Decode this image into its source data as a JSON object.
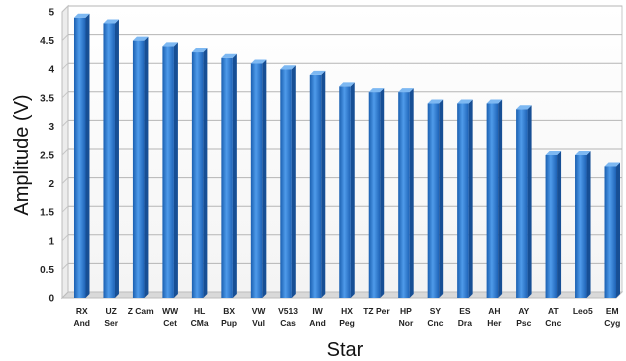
{
  "chart_data": {
    "type": "bar",
    "title": "",
    "xlabel": "Star",
    "ylabel": "Amplitude (V)",
    "ylim": [
      0,
      5
    ],
    "yticks": [
      "0",
      "0.5",
      "1",
      "1.5",
      "2",
      "2.5",
      "3",
      "3.5",
      "4",
      "4.5",
      "5"
    ],
    "grid": true,
    "legend": "none",
    "bar_color": "#2f7fd6",
    "categories": [
      [
        "RX",
        "And"
      ],
      [
        "UZ",
        "Ser"
      ],
      [
        "Z Cam"
      ],
      [
        "WW",
        "Cet"
      ],
      [
        "HL",
        "CMa"
      ],
      [
        "BX",
        "Pup"
      ],
      [
        "VW",
        "Vul"
      ],
      [
        "V513",
        "Cas"
      ],
      [
        "IW",
        "And"
      ],
      [
        "HX",
        "Peg"
      ],
      [
        "TZ Per"
      ],
      [
        "HP",
        "Nor"
      ],
      [
        "SY",
        "Cnc"
      ],
      [
        "ES",
        "Dra"
      ],
      [
        "AH",
        "Her"
      ],
      [
        "AY",
        "Psc"
      ],
      [
        "AT",
        "Cnc"
      ],
      [
        "Leo5"
      ],
      [
        "EM",
        "Cyg"
      ]
    ],
    "values": [
      4.9,
      4.8,
      4.5,
      4.4,
      4.3,
      4.2,
      4.1,
      4.0,
      3.9,
      3.7,
      3.6,
      3.6,
      3.4,
      3.4,
      3.4,
      3.3,
      2.5,
      2.5,
      2.3
    ]
  }
}
